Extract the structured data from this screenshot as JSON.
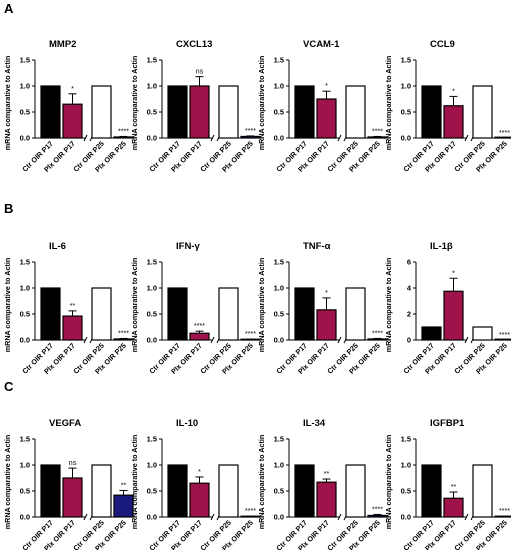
{
  "figure": {
    "row_labels": [
      "A",
      "B",
      "C"
    ],
    "categories": [
      "Ctr OIR P17",
      "Plx OIR P17",
      "Ctr OIR P25",
      "Plx OIR P25"
    ],
    "ylabel": "mRNA comparative to Actin",
    "colors": {
      "ctr_p17": "#000000",
      "plx_p17": "#a0124a",
      "ctr_p25": "#ffffff",
      "plx_p25": "#1a1a7e",
      "axis": "#000000"
    }
  },
  "chart_data": [
    {
      "type": "bar",
      "title": "MMP2",
      "categories": [
        "Ctr OIR P17",
        "Plx OIR P17",
        "Ctr OIR P25",
        "Plx OIR P25"
      ],
      "values": [
        1.0,
        0.65,
        1.0,
        0.02
      ],
      "errors": [
        0,
        0.2,
        0,
        0.01
      ],
      "significance": [
        "",
        "*",
        "",
        "****"
      ],
      "ylabel": "mRNA comparative to Actin",
      "ylim": [
        0,
        1.5
      ],
      "yticks": [
        "0.0",
        "0.5",
        "1.0",
        "1.5"
      ],
      "plx_p25_color": "#1a1a7e"
    },
    {
      "type": "bar",
      "title": "CXCL13",
      "categories": [
        "Ctr OIR P17",
        "Plx OIR P17",
        "Ctr OIR P25",
        "Plx OIR P25"
      ],
      "values": [
        1.0,
        1.0,
        1.0,
        0.03
      ],
      "errors": [
        0,
        0.18,
        0,
        0.01
      ],
      "significance": [
        "",
        "ns",
        "",
        "****"
      ],
      "ylabel": "mRNA comparative to Actin",
      "ylim": [
        0,
        1.5
      ],
      "yticks": [
        "0.0",
        "0.5",
        "1.0",
        "1.5"
      ],
      "plx_p25_color": "#1a1a7e"
    },
    {
      "type": "bar",
      "title": "VCAM-1",
      "categories": [
        "Ctr OIR P17",
        "Plx OIR P17",
        "Ctr OIR P25",
        "Plx OIR P25"
      ],
      "values": [
        1.0,
        0.75,
        1.0,
        0.02
      ],
      "errors": [
        0,
        0.15,
        0,
        0.01
      ],
      "significance": [
        "",
        "*",
        "",
        "****"
      ],
      "ylabel": "mRNA comparative to Actin",
      "ylim": [
        0,
        1.5
      ],
      "yticks": [
        "0.0",
        "0.5",
        "1.0",
        "1.5"
      ],
      "plx_p25_color": "#1a1a7e"
    },
    {
      "type": "bar",
      "title": "CCL9",
      "categories": [
        "Ctr OIR P17",
        "Plx OIR P17",
        "Ctr OIR P25",
        "Plx OIR P25"
      ],
      "values": [
        1.0,
        0.62,
        1.0,
        0.0
      ],
      "errors": [
        0,
        0.18,
        0,
        0
      ],
      "significance": [
        "",
        "*",
        "",
        "****"
      ],
      "ylabel": "mRNA comparative to Actin",
      "ylim": [
        0,
        1.5
      ],
      "yticks": [
        "0.0",
        "0.5",
        "1.0",
        "1.5"
      ],
      "plx_p25_color": "#1a1a7e"
    },
    {
      "type": "bar",
      "title": "IL-6",
      "categories": [
        "Ctr OIR P17",
        "Plx OIR P17",
        "Ctr OIR P25",
        "Plx OIR P25"
      ],
      "values": [
        1.0,
        0.46,
        1.0,
        0.02
      ],
      "errors": [
        0,
        0.1,
        0,
        0.01
      ],
      "significance": [
        "",
        "**",
        "",
        "****"
      ],
      "ylabel": "mRNA comparative to Actin",
      "ylim": [
        0,
        1.5
      ],
      "yticks": [
        "0.0",
        "0.5",
        "1.0",
        "1.5"
      ],
      "plx_p25_color": "#1a1a7e"
    },
    {
      "type": "bar",
      "title": "IFN-γ",
      "categories": [
        "Ctr OIR P17",
        "Plx OIR P17",
        "Ctr OIR P25",
        "Plx OIR P25"
      ],
      "values": [
        1.0,
        0.13,
        1.0,
        0.01
      ],
      "errors": [
        0,
        0.04,
        0,
        0.005
      ],
      "significance": [
        "",
        "****",
        "",
        "****"
      ],
      "ylabel": "mRNA comparative to Actin",
      "ylim": [
        0,
        1.5
      ],
      "yticks": [
        "0.0",
        "0.5",
        "1.0",
        "1.5"
      ],
      "plx_p25_color": "#1a1a7e"
    },
    {
      "type": "bar",
      "title": "TNF-α",
      "categories": [
        "Ctr OIR P17",
        "Plx OIR P17",
        "Ctr OIR P25",
        "Plx OIR P25"
      ],
      "values": [
        1.0,
        0.58,
        1.0,
        0.02
      ],
      "errors": [
        0,
        0.23,
        0,
        0.01
      ],
      "significance": [
        "",
        "*",
        "",
        "****"
      ],
      "ylabel": "mRNA comparative to Actin",
      "ylim": [
        0,
        1.5
      ],
      "yticks": [
        "0.0",
        "0.5",
        "1.0",
        "1.5"
      ],
      "plx_p25_color": "#1a1a7e"
    },
    {
      "type": "bar",
      "title": "IL-1β",
      "categories": [
        "Ctr OIR P17",
        "Plx OIR P17",
        "Ctr OIR P25",
        "Plx OIR P25"
      ],
      "values": [
        1.0,
        3.75,
        1.0,
        0.0
      ],
      "errors": [
        0,
        1.0,
        0,
        0
      ],
      "significance": [
        "",
        "*",
        "",
        "****"
      ],
      "ylabel": "mRNA comparative to Actin",
      "ylim": [
        0,
        6
      ],
      "yticks": [
        "0",
        "2",
        "4",
        "6"
      ],
      "plx_p25_color": "#1a1a7e"
    },
    {
      "type": "bar",
      "title": "VEGFA",
      "categories": [
        "Ctr OIR P17",
        "Plx OIR P17",
        "Ctr OIR P25",
        "Plx OIR P25"
      ],
      "values": [
        1.0,
        0.75,
        1.0,
        0.42
      ],
      "errors": [
        0,
        0.19,
        0,
        0.09
      ],
      "significance": [
        "",
        "ns",
        "",
        "**"
      ],
      "ylabel": "mRNA comparative to Actin",
      "ylim": [
        0,
        1.5
      ],
      "yticks": [
        "0.0",
        "0.5",
        "1.0",
        "1.5"
      ],
      "plx_p25_color": "#1a1a7e"
    },
    {
      "type": "bar",
      "title": "IL-10",
      "categories": [
        "Ctr OIR P17",
        "Plx OIR P17",
        "Ctr OIR P25",
        "Plx OIR P25"
      ],
      "values": [
        1.0,
        0.65,
        1.0,
        0.01
      ],
      "errors": [
        0,
        0.12,
        0,
        0.005
      ],
      "significance": [
        "",
        "*",
        "",
        "****"
      ],
      "ylabel": "mRNA comparative to Actin",
      "ylim": [
        0,
        1.5
      ],
      "yticks": [
        "0.0",
        "0.5",
        "1.0",
        "1.5"
      ],
      "plx_p25_color": "#1a1a7e"
    },
    {
      "type": "bar",
      "title": "IL-34",
      "categories": [
        "Ctr OIR P17",
        "Plx OIR P17",
        "Ctr OIR P25",
        "Plx OIR P25"
      ],
      "values": [
        1.0,
        0.67,
        1.0,
        0.03
      ],
      "errors": [
        0,
        0.06,
        0,
        0.02
      ],
      "significance": [
        "",
        "**",
        "",
        "****"
      ],
      "ylabel": "mRNA comparative to Actin",
      "ylim": [
        0,
        1.5
      ],
      "yticks": [
        "0.0",
        "0.5",
        "1.0",
        "1.5"
      ],
      "plx_p25_color": "#1a1a7e"
    },
    {
      "type": "bar",
      "title": "IGFBP1",
      "categories": [
        "Ctr OIR P17",
        "Plx OIR P17",
        "Ctr OIR P25",
        "Plx OIR P25"
      ],
      "values": [
        1.0,
        0.36,
        1.0,
        0.01
      ],
      "errors": [
        0,
        0.12,
        0,
        0.005
      ],
      "significance": [
        "",
        "**",
        "",
        "****"
      ],
      "ylabel": "mRNA comparative to Actin",
      "ylim": [
        0,
        1.5
      ],
      "yticks": [
        "0.0",
        "0.5",
        "1.0",
        "1.5"
      ],
      "plx_p25_color": "#1a1a7e"
    }
  ]
}
